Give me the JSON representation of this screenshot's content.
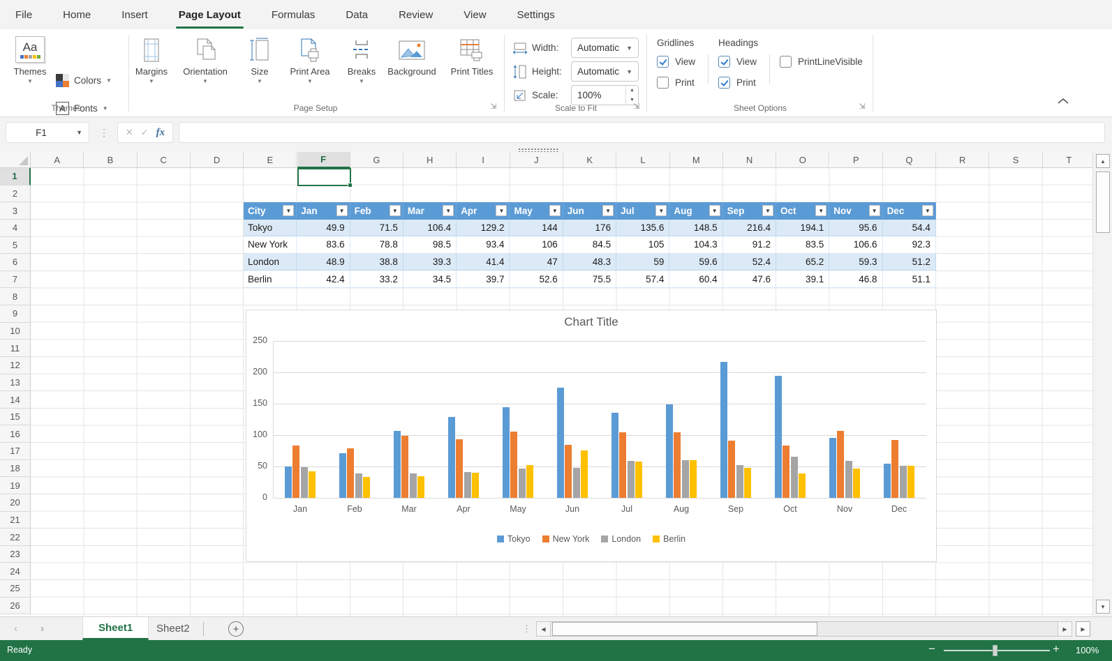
{
  "menu": {
    "items": [
      "File",
      "Home",
      "Insert",
      "Page Layout",
      "Formulas",
      "Data",
      "Review",
      "View",
      "Settings"
    ],
    "active_index": 3
  },
  "ribbon": {
    "themes": {
      "group_label": "Themes",
      "themes_btn": "Themes",
      "colors_btn": "Colors",
      "fonts_btn": "Fonts",
      "aa_glyph": "Aa",
      "a_glyph": "A"
    },
    "page_setup": {
      "group_label": "Page Setup",
      "margins": "Margins",
      "orientation": "Orientation",
      "size": "Size",
      "print_area": "Print Area",
      "breaks": "Breaks",
      "background": "Background",
      "print_titles": "Print Titles"
    },
    "scale_to_fit": {
      "group_label": "Scale to Fit",
      "width_label": "Width:",
      "width_value": "Automatic",
      "height_label": "Height:",
      "height_value": "Automatic",
      "scale_label": "Scale:",
      "scale_value": "100%"
    },
    "sheet_options": {
      "group_label": "Sheet Options",
      "gridlines_title": "Gridlines",
      "headings_title": "Headings",
      "gridlines_view_label": "View",
      "gridlines_print_label": "Print",
      "headings_view_label": "View",
      "headings_print_label": "Print",
      "print_line_label": "PrintLineVisible",
      "gridlines_view_checked": true,
      "gridlines_print_checked": false,
      "headings_view_checked": true,
      "headings_print_checked": true,
      "print_line_checked": false
    }
  },
  "formula_bar": {
    "name_box": "F1",
    "formula": "",
    "fx_label": "fx"
  },
  "grid": {
    "columns": [
      "A",
      "B",
      "C",
      "D",
      "E",
      "F",
      "G",
      "H",
      "I",
      "J",
      "K",
      "L",
      "M",
      "N",
      "O",
      "P",
      "Q",
      "R",
      "S",
      "T"
    ],
    "rows": [
      "1",
      "2",
      "3",
      "4",
      "5",
      "6",
      "7",
      "8",
      "9",
      "10",
      "11",
      "12",
      "13",
      "14",
      "15",
      "16",
      "17",
      "18",
      "19",
      "20",
      "21",
      "22",
      "23",
      "24",
      "25",
      "26"
    ],
    "selected_column": "F",
    "selected_row": "1",
    "selected_cell": "F1"
  },
  "table": {
    "city_header": "City",
    "months": [
      "Jan",
      "Feb",
      "Mar",
      "Apr",
      "May",
      "Jun",
      "Jul",
      "Aug",
      "Sep",
      "Oct",
      "Nov",
      "Dec"
    ],
    "rows": [
      {
        "city": "Tokyo",
        "values": [
          49.9,
          71.5,
          106.4,
          129.2,
          144,
          176,
          135.6,
          148.5,
          216.4,
          194.1,
          95.6,
          54.4
        ]
      },
      {
        "city": "New York",
        "values": [
          83.6,
          78.8,
          98.5,
          93.4,
          106,
          84.5,
          105,
          104.3,
          91.2,
          83.5,
          106.6,
          92.3
        ]
      },
      {
        "city": "London",
        "values": [
          48.9,
          38.8,
          39.3,
          41.4,
          47,
          48.3,
          59,
          59.6,
          52.4,
          65.2,
          59.3,
          51.2
        ]
      },
      {
        "city": "Berlin",
        "values": [
          42.4,
          33.2,
          34.5,
          39.7,
          52.6,
          75.5,
          57.4,
          60.4,
          47.6,
          39.1,
          46.8,
          51.1
        ]
      }
    ]
  },
  "chart_data": {
    "type": "bar",
    "title": "Chart Title",
    "categories": [
      "Jan",
      "Feb",
      "Mar",
      "Apr",
      "May",
      "Jun",
      "Jul",
      "Aug",
      "Sep",
      "Oct",
      "Nov",
      "Dec"
    ],
    "series": [
      {
        "name": "Tokyo",
        "color": "#5B9BD5",
        "values": [
          49.9,
          71.5,
          106.4,
          129.2,
          144,
          176,
          135.6,
          148.5,
          216.4,
          194.1,
          95.6,
          54.4
        ]
      },
      {
        "name": "New York",
        "color": "#ED7D31",
        "values": [
          83.6,
          78.8,
          98.5,
          93.4,
          106,
          84.5,
          105,
          104.3,
          91.2,
          83.5,
          106.6,
          92.3
        ]
      },
      {
        "name": "London",
        "color": "#A5A5A5",
        "values": [
          48.9,
          38.8,
          39.3,
          41.4,
          47,
          48.3,
          59,
          59.6,
          52.4,
          65.2,
          59.3,
          51.2
        ]
      },
      {
        "name": "Berlin",
        "color": "#FFC000",
        "values": [
          42.4,
          33.2,
          34.5,
          39.7,
          52.6,
          75.5,
          57.4,
          60.4,
          47.6,
          39.1,
          46.8,
          51.1
        ]
      }
    ],
    "ylim": [
      0,
      250
    ],
    "yticks": [
      0,
      50,
      100,
      150,
      200,
      250
    ],
    "xlabel": "",
    "ylabel": "",
    "legend_position": "bottom",
    "grid": true
  },
  "sheet_tabs": {
    "tabs": [
      {
        "label": "Sheet1",
        "active": true
      },
      {
        "label": "Sheet2",
        "active": false
      }
    ],
    "add_label": "+"
  },
  "status_bar": {
    "status": "Ready",
    "zoom": "100%"
  },
  "colors": {
    "accent_green": "#217346",
    "table_header_blue": "#5B9BD5",
    "band_blue": "#DCEAF7"
  }
}
